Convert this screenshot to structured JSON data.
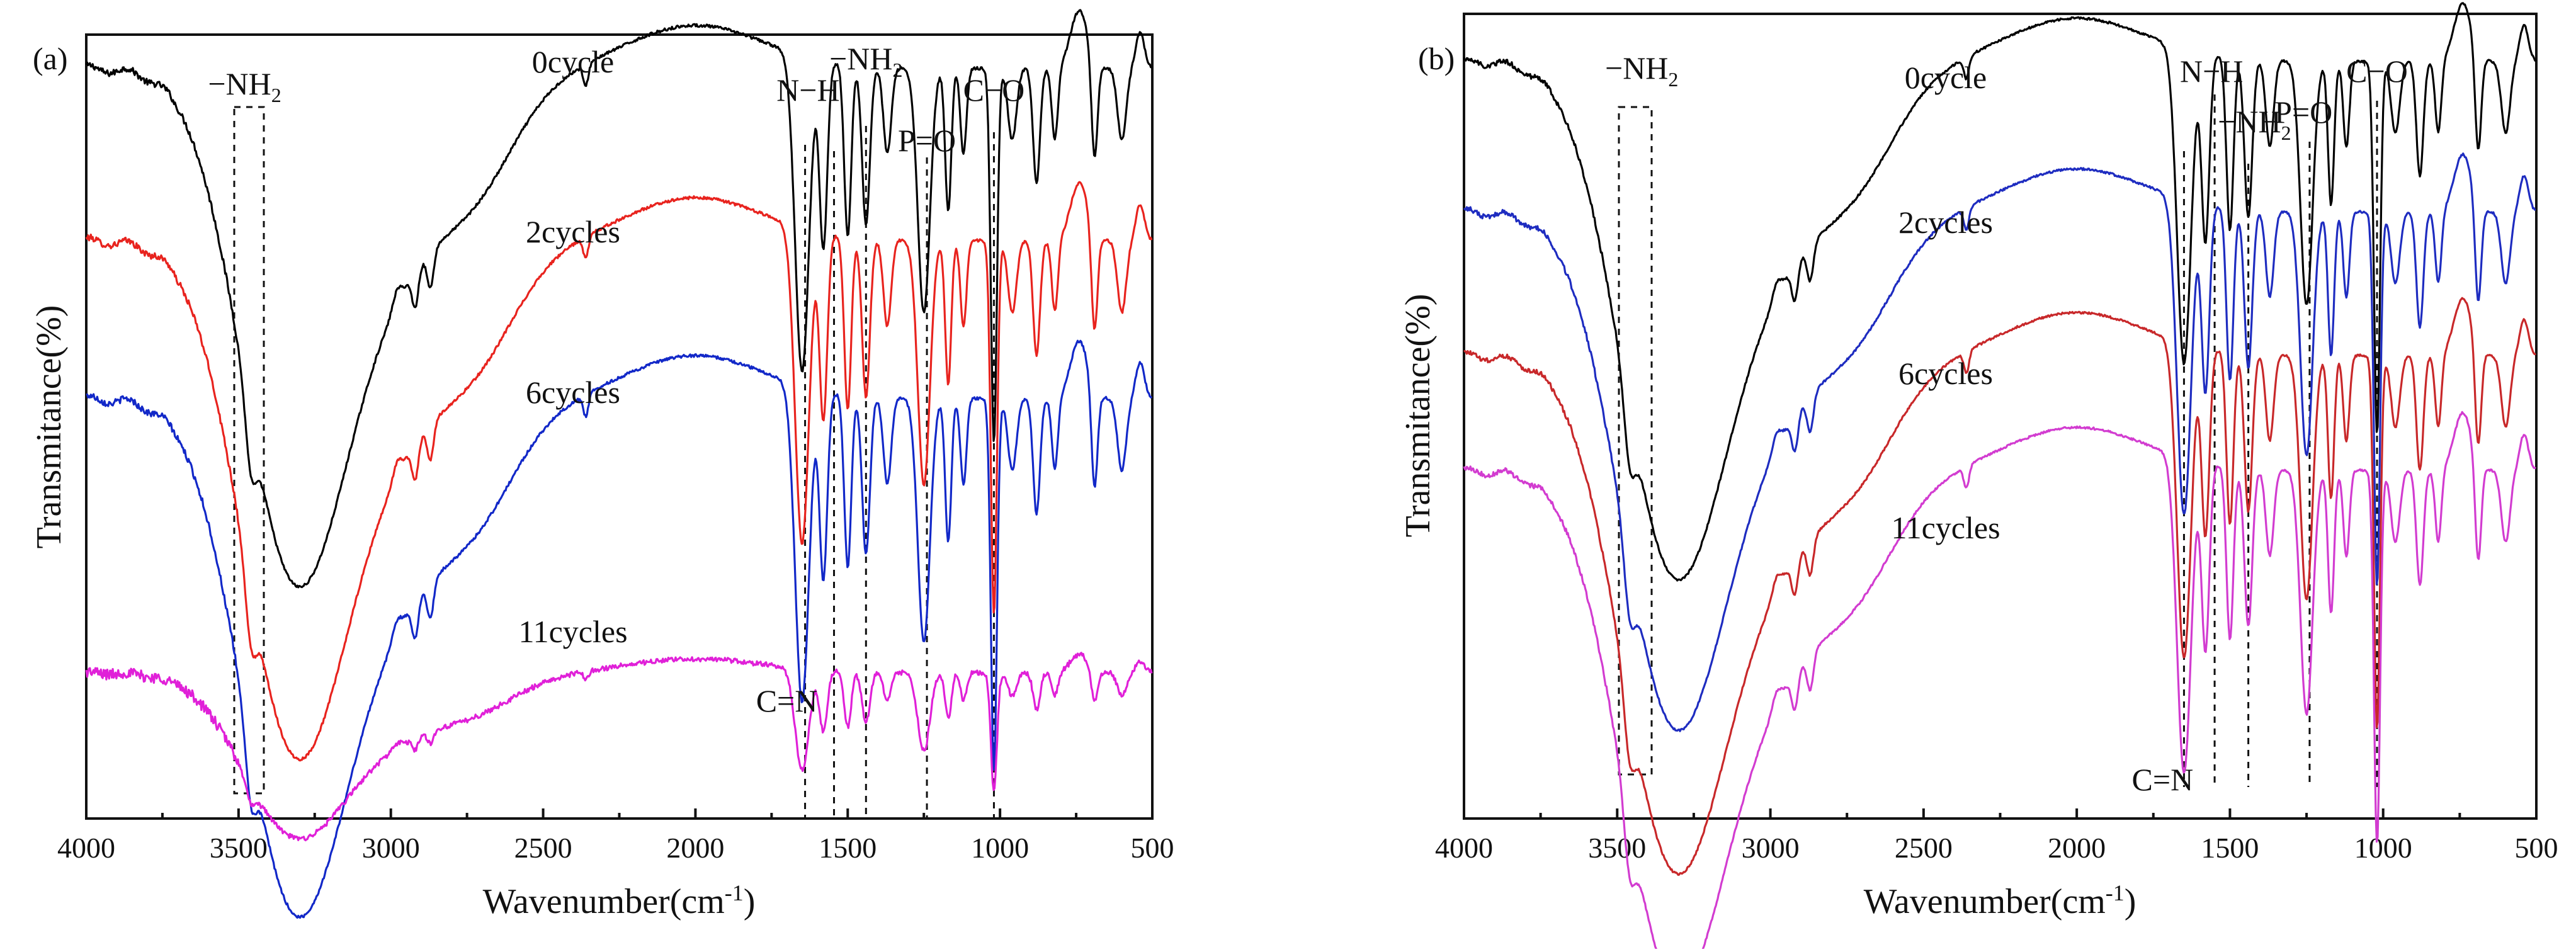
{
  "chart_data": [
    {
      "panel": "(a)",
      "type": "line",
      "xlabel": "Wavenumber(cm-1)",
      "ylabel": "Transmitance(%)",
      "xlim": [
        4000,
        500
      ],
      "xticks": [
        "4000",
        "3500",
        "3000",
        "2500",
        "2000",
        "1500",
        "1000",
        "500"
      ],
      "vlines": [
        1640,
        1545,
        1440,
        1240,
        1020
      ],
      "series": [
        {
          "name": "0cycle",
          "color": "#000000",
          "offset": 0.86,
          "noise": 0.004,
          "depth": 1.0
        },
        {
          "name": "2cycles",
          "color": "#e8231e",
          "offset": 0.62,
          "noise": 0.004,
          "depth": 1.0
        },
        {
          "name": "6cycles",
          "color": "#1228c8",
          "offset": 0.4,
          "noise": 0.004,
          "depth": 1.0
        },
        {
          "name": "11cycles",
          "color": "#e020d8",
          "offset": 0.12,
          "noise": 0.007,
          "depth": 0.32
        }
      ],
      "annotations": [
        {
          "text": "−NH",
          "sub": "2",
          "x": 3480
        },
        {
          "text": "N−H",
          "x": 1630
        },
        {
          "text": "−NH",
          "sub": "2",
          "x": 1440
        },
        {
          "text": "P=O",
          "x": 1240
        },
        {
          "text": "C−O",
          "x": 1020
        },
        {
          "text": "C=N",
          "x": 1700
        }
      ]
    },
    {
      "panel": "(b)",
      "type": "line",
      "xlabel": "Wavenumber(cm-1)",
      "ylabel": "Transmitance(%)",
      "xlim": [
        4000,
        500
      ],
      "xticks": [
        "4000",
        "3500",
        "3000",
        "2500",
        "2000",
        "1500",
        "1000",
        "500"
      ],
      "vlines": [
        1650,
        1550,
        1440,
        1240,
        1020
      ],
      "series": [
        {
          "name": "0cycle",
          "color": "#000000",
          "offset": 0.87,
          "noise": 0.003,
          "depth": 1.0
        },
        {
          "name": "2cycles",
          "color": "#1e2cc0",
          "offset": 0.66,
          "noise": 0.003,
          "depth": 1.0
        },
        {
          "name": "6cycles",
          "color": "#c8282a",
          "offset": 0.46,
          "noise": 0.003,
          "depth": 1.0
        },
        {
          "name": "11cycles",
          "color": "#d23cd0",
          "offset": 0.3,
          "noise": 0.003,
          "depth": 1.0
        }
      ],
      "annotations": [
        {
          "text": "−NH",
          "sub": "2",
          "x": 3420
        },
        {
          "text": "N−H",
          "x": 1560
        },
        {
          "text": "−NH",
          "sub": "2",
          "x": 1420
        },
        {
          "text": "P=O",
          "x": 1260
        },
        {
          "text": "C−O",
          "x": 1020
        },
        {
          "text": "C=N",
          "x": 1720
        }
      ]
    }
  ]
}
